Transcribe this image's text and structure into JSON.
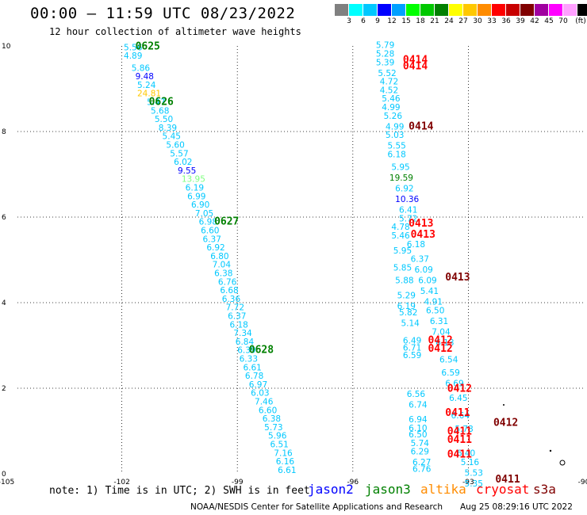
{
  "header": {
    "title": "00:00 – 11:59 UTC 08/23/2022",
    "subtitle": "12 hour collection of altimeter wave heights"
  },
  "colorbar": {
    "colors": [
      "#808080",
      "#00ffff",
      "#00c8ff",
      "#0000ff",
      "#00a0ff",
      "#00ff00",
      "#00c800",
      "#008000",
      "#ffff00",
      "#ffc800",
      "#ff8c00",
      "#ff0000",
      "#c80000",
      "#800000",
      "#a000a0",
      "#ff00ff",
      "#ffa0ff",
      "#000000"
    ],
    "labels": [
      "3",
      "6",
      "9",
      "12",
      "15",
      "18",
      "21",
      "24",
      "27",
      "30",
      "33",
      "36",
      "39",
      "42",
      "45",
      "70",
      "(ft)"
    ]
  },
  "axes": {
    "x_ticks": [
      "-105",
      "-102",
      "-99",
      "-96",
      "-93",
      "-90"
    ],
    "y_ticks": [
      "0",
      "2",
      "4",
      "6",
      "8",
      "10"
    ]
  },
  "legend": {
    "note": "note:  1) Time is in UTC; 2) SWH is in feet",
    "satellites": [
      {
        "name": "jason2",
        "color": "#0000ff"
      },
      {
        "name": "jason3",
        "color": "#008000"
      },
      {
        "name": "altika",
        "color": "#ff8c00"
      },
      {
        "name": "cryosat",
        "color": "#ff0000"
      },
      {
        "name": "s3a",
        "color": "#800000"
      }
    ]
  },
  "footer": {
    "credit": "NOAA/NESDIS Center for Satellite Applications and Research",
    "timestamp": "Aug 25 08:29:16 UTC 2022"
  },
  "map_data": {
    "x_range": [
      -105,
      -90
    ],
    "y_range": [
      0,
      10
    ],
    "points": [
      {
        "lon": -101.95,
        "lat": 9.9,
        "v": "5.56",
        "c": "#00c8ff"
      },
      {
        "lon": -101.95,
        "lat": 9.7,
        "v": "4.89",
        "c": "#00c8ff"
      },
      {
        "lon": -101.75,
        "lat": 9.42,
        "v": "5.86",
        "c": "#00c8ff"
      },
      {
        "lon": -101.65,
        "lat": 9.22,
        "v": "9.48",
        "c": "#0000ff"
      },
      {
        "lon": -101.6,
        "lat": 9.02,
        "v": "5.24",
        "c": "#00c8ff"
      },
      {
        "lon": -101.6,
        "lat": 8.82,
        "v": "24.81",
        "c": "#ffc800"
      },
      {
        "lon": -101.35,
        "lat": 8.62,
        "v": "5.47",
        "c": "#00c8ff"
      },
      {
        "lon": -101.25,
        "lat": 8.42,
        "v": "5.68",
        "c": "#00c8ff"
      },
      {
        "lon": -101.15,
        "lat": 8.22,
        "v": "5.50",
        "c": "#00c8ff"
      },
      {
        "lon": -101.05,
        "lat": 8.02,
        "v": "8.39",
        "c": "#00c8ff"
      },
      {
        "lon": -100.95,
        "lat": 7.82,
        "v": "5.45",
        "c": "#00c8ff"
      },
      {
        "lon": -100.85,
        "lat": 7.62,
        "v": "5.60",
        "c": "#00c8ff"
      },
      {
        "lon": -100.75,
        "lat": 7.42,
        "v": "5.57",
        "c": "#00c8ff"
      },
      {
        "lon": -100.65,
        "lat": 7.22,
        "v": "6.02",
        "c": "#00c8ff"
      },
      {
        "lon": -100.55,
        "lat": 7.02,
        "v": "9.55",
        "c": "#0000ff"
      },
      {
        "lon": -100.45,
        "lat": 6.82,
        "v": "13.95",
        "c": "#80ff80"
      },
      {
        "lon": -100.35,
        "lat": 6.62,
        "v": "6.19",
        "c": "#00c8ff"
      },
      {
        "lon": -100.3,
        "lat": 6.42,
        "v": "6.99",
        "c": "#00c8ff"
      },
      {
        "lon": -100.2,
        "lat": 6.22,
        "v": "6.90",
        "c": "#00c8ff"
      },
      {
        "lon": -100.1,
        "lat": 6.02,
        "v": "7.05",
        "c": "#00c8ff"
      },
      {
        "lon": -100.0,
        "lat": 5.82,
        "v": "6.98",
        "c": "#00c8ff"
      },
      {
        "lon": -99.95,
        "lat": 5.62,
        "v": "6.60",
        "c": "#00c8ff"
      },
      {
        "lon": -99.9,
        "lat": 5.42,
        "v": "6.37",
        "c": "#00c8ff"
      },
      {
        "lon": -99.8,
        "lat": 5.22,
        "v": "6.92",
        "c": "#00c8ff"
      },
      {
        "lon": -99.7,
        "lat": 5.02,
        "v": "6.80",
        "c": "#00c8ff"
      },
      {
        "lon": -99.65,
        "lat": 4.82,
        "v": "7.04",
        "c": "#00c8ff"
      },
      {
        "lon": -99.6,
        "lat": 4.62,
        "v": "6.38",
        "c": "#00c8ff"
      },
      {
        "lon": -99.5,
        "lat": 4.42,
        "v": "6.76",
        "c": "#00c8ff"
      },
      {
        "lon": -99.45,
        "lat": 4.22,
        "v": "6.68",
        "c": "#00c8ff"
      },
      {
        "lon": -99.4,
        "lat": 4.02,
        "v": "6.36",
        "c": "#00c8ff"
      },
      {
        "lon": -99.3,
        "lat": 3.82,
        "v": "7.72",
        "c": "#00c8ff"
      },
      {
        "lon": -99.25,
        "lat": 3.62,
        "v": "6.37",
        "c": "#00c8ff"
      },
      {
        "lon": -99.2,
        "lat": 3.42,
        "v": "6.18",
        "c": "#00c8ff"
      },
      {
        "lon": -99.1,
        "lat": 3.22,
        "v": "7.34",
        "c": "#00c8ff"
      },
      {
        "lon": -99.05,
        "lat": 3.02,
        "v": "6.84",
        "c": "#00c8ff"
      },
      {
        "lon": -99.0,
        "lat": 2.82,
        "v": "6.39",
        "c": "#00c8ff"
      },
      {
        "lon": -98.95,
        "lat": 2.62,
        "v": "6.33",
        "c": "#00c8ff"
      },
      {
        "lon": -98.85,
        "lat": 2.42,
        "v": "6.61",
        "c": "#00c8ff"
      },
      {
        "lon": -98.8,
        "lat": 2.22,
        "v": "6.78",
        "c": "#00c8ff"
      },
      {
        "lon": -98.7,
        "lat": 2.02,
        "v": "6.97",
        "c": "#00c8ff"
      },
      {
        "lon": -98.65,
        "lat": 1.82,
        "v": "6.03",
        "c": "#00c8ff"
      },
      {
        "lon": -98.55,
        "lat": 1.62,
        "v": "7.46",
        "c": "#00c8ff"
      },
      {
        "lon": -98.45,
        "lat": 1.42,
        "v": "6.60",
        "c": "#00c8ff"
      },
      {
        "lon": -98.35,
        "lat": 1.22,
        "v": "6.38",
        "c": "#00c8ff"
      },
      {
        "lon": -98.3,
        "lat": 1.02,
        "v": "5.73",
        "c": "#00c8ff"
      },
      {
        "lon": -98.2,
        "lat": 0.82,
        "v": "5.96",
        "c": "#00c8ff"
      },
      {
        "lon": -98.15,
        "lat": 0.62,
        "v": "6.51",
        "c": "#00c8ff"
      },
      {
        "lon": -98.05,
        "lat": 0.42,
        "v": "7.16",
        "c": "#00c8ff"
      },
      {
        "lon": -98.0,
        "lat": 0.22,
        "v": "6.16",
        "c": "#00c8ff"
      },
      {
        "lon": -97.95,
        "lat": 0.02,
        "v": "6.61",
        "c": "#00c8ff"
      },
      {
        "lon": -95.4,
        "lat": 9.95,
        "v": "5.79",
        "c": "#00c8ff"
      },
      {
        "lon": -95.4,
        "lat": 9.75,
        "v": "5.28",
        "c": "#00c8ff"
      },
      {
        "lon": -95.4,
        "lat": 9.55,
        "v": "5.39",
        "c": "#00c8ff"
      },
      {
        "lon": -95.35,
        "lat": 9.3,
        "v": "5.52",
        "c": "#00c8ff"
      },
      {
        "lon": -95.3,
        "lat": 9.1,
        "v": "4.72",
        "c": "#00c8ff"
      },
      {
        "lon": -95.3,
        "lat": 8.9,
        "v": "4.52",
        "c": "#00c8ff"
      },
      {
        "lon": -95.25,
        "lat": 8.7,
        "v": "5.46",
        "c": "#00c8ff"
      },
      {
        "lon": -95.25,
        "lat": 8.5,
        "v": "4.99",
        "c": "#00c8ff"
      },
      {
        "lon": -95.2,
        "lat": 8.3,
        "v": "5.26",
        "c": "#00c8ff"
      },
      {
        "lon": -95.15,
        "lat": 8.05,
        "v": "4.99",
        "c": "#00c8ff"
      },
      {
        "lon": -95.15,
        "lat": 7.85,
        "v": "5.03",
        "c": "#00c8ff"
      },
      {
        "lon": -95.1,
        "lat": 7.6,
        "v": "5.55",
        "c": "#00c8ff"
      },
      {
        "lon": -95.1,
        "lat": 7.4,
        "v": "6.18",
        "c": "#00c8ff"
      },
      {
        "lon": -95.0,
        "lat": 7.1,
        "v": "5.95",
        "c": "#00c8ff"
      },
      {
        "lon": -95.05,
        "lat": 6.85,
        "v": "19.59",
        "c": "#008000"
      },
      {
        "lon": -94.9,
        "lat": 6.6,
        "v": "6.92",
        "c": "#00c8ff"
      },
      {
        "lon": -94.9,
        "lat": 6.35,
        "v": "10.36",
        "c": "#0000ff"
      },
      {
        "lon": -94.8,
        "lat": 6.1,
        "v": "6.41",
        "c": "#00c8ff"
      },
      {
        "lon": -94.8,
        "lat": 5.9,
        "v": "5.72",
        "c": "#00c8ff"
      },
      {
        "lon": -95.0,
        "lat": 5.7,
        "v": "4.78",
        "c": "#00c8ff"
      },
      {
        "lon": -95.0,
        "lat": 5.5,
        "v": "5.46",
        "c": "#00c8ff"
      },
      {
        "lon": -94.6,
        "lat": 5.3,
        "v": "6.18",
        "c": "#00c8ff"
      },
      {
        "lon": -94.95,
        "lat": 5.15,
        "v": "5.95",
        "c": "#00c8ff"
      },
      {
        "lon": -94.5,
        "lat": 4.95,
        "v": "6.37",
        "c": "#00c8ff"
      },
      {
        "lon": -94.95,
        "lat": 4.75,
        "v": "5.85",
        "c": "#00c8ff"
      },
      {
        "lon": -94.4,
        "lat": 4.7,
        "v": "6.09",
        "c": "#00c8ff"
      },
      {
        "lon": -94.9,
        "lat": 4.45,
        "v": "5.88",
        "c": "#00c8ff"
      },
      {
        "lon": -94.3,
        "lat": 4.45,
        "v": "6.09",
        "c": "#00c8ff"
      },
      {
        "lon": -94.25,
        "lat": 4.2,
        "v": "5.41",
        "c": "#00c8ff"
      },
      {
        "lon": -94.85,
        "lat": 4.1,
        "v": "5.29",
        "c": "#00c8ff"
      },
      {
        "lon": -94.15,
        "lat": 3.95,
        "v": "4.91",
        "c": "#00c8ff"
      },
      {
        "lon": -94.85,
        "lat": 3.85,
        "v": "6.19",
        "c": "#00c8ff"
      },
      {
        "lon": -94.1,
        "lat": 3.75,
        "v": "6.50",
        "c": "#00c8ff"
      },
      {
        "lon": -94.8,
        "lat": 3.7,
        "v": "5.82",
        "c": "#00c8ff"
      },
      {
        "lon": -94.0,
        "lat": 3.5,
        "v": "6.31",
        "c": "#00c8ff"
      },
      {
        "lon": -94.75,
        "lat": 3.45,
        "v": "5.14",
        "c": "#00c8ff"
      },
      {
        "lon": -93.95,
        "lat": 3.25,
        "v": "7.04",
        "c": "#00c8ff"
      },
      {
        "lon": -94.7,
        "lat": 3.05,
        "v": "6.49",
        "c": "#00c8ff"
      },
      {
        "lon": -93.85,
        "lat": 3.0,
        "v": "6.13",
        "c": "#00c8ff"
      },
      {
        "lon": -94.7,
        "lat": 2.88,
        "v": "6.71",
        "c": "#00c8ff"
      },
      {
        "lon": -94.7,
        "lat": 2.7,
        "v": "6.59",
        "c": "#00c8ff"
      },
      {
        "lon": -93.75,
        "lat": 2.6,
        "v": "6.54",
        "c": "#00c8ff"
      },
      {
        "lon": -93.7,
        "lat": 2.3,
        "v": "6.59",
        "c": "#00c8ff"
      },
      {
        "lon": -93.6,
        "lat": 2.05,
        "v": "6.69",
        "c": "#00c8ff"
      },
      {
        "lon": -94.6,
        "lat": 1.8,
        "v": "6.56",
        "c": "#00c8ff"
      },
      {
        "lon": -93.5,
        "lat": 1.7,
        "v": "6.45",
        "c": "#00c8ff"
      },
      {
        "lon": -94.55,
        "lat": 1.55,
        "v": "6.74",
        "c": "#00c8ff"
      },
      {
        "lon": -93.45,
        "lat": 1.3,
        "v": "6.64",
        "c": "#00c8ff"
      },
      {
        "lon": -94.55,
        "lat": 1.2,
        "v": "6.94",
        "c": "#00c8ff"
      },
      {
        "lon": -94.55,
        "lat": 1.0,
        "v": "6.10",
        "c": "#00c8ff"
      },
      {
        "lon": -93.35,
        "lat": 0.98,
        "v": "5.73",
        "c": "#00c8ff"
      },
      {
        "lon": -94.55,
        "lat": 0.85,
        "v": "6.50",
        "c": "#00c8ff"
      },
      {
        "lon": -94.5,
        "lat": 0.65,
        "v": "5.74",
        "c": "#00c8ff"
      },
      {
        "lon": -94.5,
        "lat": 0.45,
        "v": "6.29",
        "c": "#00c8ff"
      },
      {
        "lon": -93.3,
        "lat": 0.42,
        "v": "6.40",
        "c": "#00c8ff"
      },
      {
        "lon": -94.45,
        "lat": 0.2,
        "v": "6.27",
        "c": "#00c8ff"
      },
      {
        "lon": -93.2,
        "lat": 0.2,
        "v": "5.16",
        "c": "#00c8ff"
      },
      {
        "lon": -94.45,
        "lat": 0.05,
        "v": "6.76",
        "c": "#00c8ff"
      },
      {
        "lon": -93.1,
        "lat": -0.05,
        "v": "5.53",
        "c": "#00c8ff"
      },
      {
        "lon": -93.1,
        "lat": -0.3,
        "v": "5.35",
        "c": "#00c8ff"
      }
    ],
    "passes": [
      {
        "lon": -101.65,
        "lat": 9.92,
        "label": "0625",
        "c": "#008000"
      },
      {
        "lon": -101.3,
        "lat": 8.62,
        "label": "0626",
        "c": "#008000"
      },
      {
        "lon": -99.6,
        "lat": 5.82,
        "label": "0627",
        "c": "#008000"
      },
      {
        "lon": -98.7,
        "lat": 2.82,
        "label": "0628",
        "c": "#008000"
      },
      {
        "lon": -94.7,
        "lat": 9.6,
        "label": "0414",
        "c": "#ff0000"
      },
      {
        "lon": -94.7,
        "lat": 9.45,
        "label": "0414",
        "c": "#ff0000"
      },
      {
        "lon": -94.55,
        "lat": 8.05,
        "label": "0414",
        "c": "#800000"
      },
      {
        "lon": -94.55,
        "lat": 5.78,
        "label": "0413",
        "c": "#ff0000"
      },
      {
        "lon": -94.5,
        "lat": 5.52,
        "label": "0413",
        "c": "#ff0000"
      },
      {
        "lon": -93.6,
        "lat": 4.52,
        "label": "0413",
        "c": "#800000"
      },
      {
        "lon": -94.05,
        "lat": 3.05,
        "label": "0412",
        "c": "#ff0000"
      },
      {
        "lon": -94.05,
        "lat": 2.85,
        "label": "0412",
        "c": "#ff0000"
      },
      {
        "lon": -93.55,
        "lat": 1.92,
        "label": "0412",
        "c": "#ff0000"
      },
      {
        "lon": -93.6,
        "lat": 1.35,
        "label": "0411",
        "c": "#ff0000"
      },
      {
        "lon": -92.35,
        "lat": 1.12,
        "label": "0412",
        "c": "#800000"
      },
      {
        "lon": -93.55,
        "lat": 0.92,
        "label": "0411",
        "c": "#ff0000"
      },
      {
        "lon": -93.55,
        "lat": 0.72,
        "label": "0411",
        "c": "#ff0000"
      },
      {
        "lon": -93.55,
        "lat": 0.38,
        "label": "0411",
        "c": "#ff0000"
      },
      {
        "lon": -92.3,
        "lat": -0.2,
        "label": "0411",
        "c": "#800000"
      }
    ]
  }
}
